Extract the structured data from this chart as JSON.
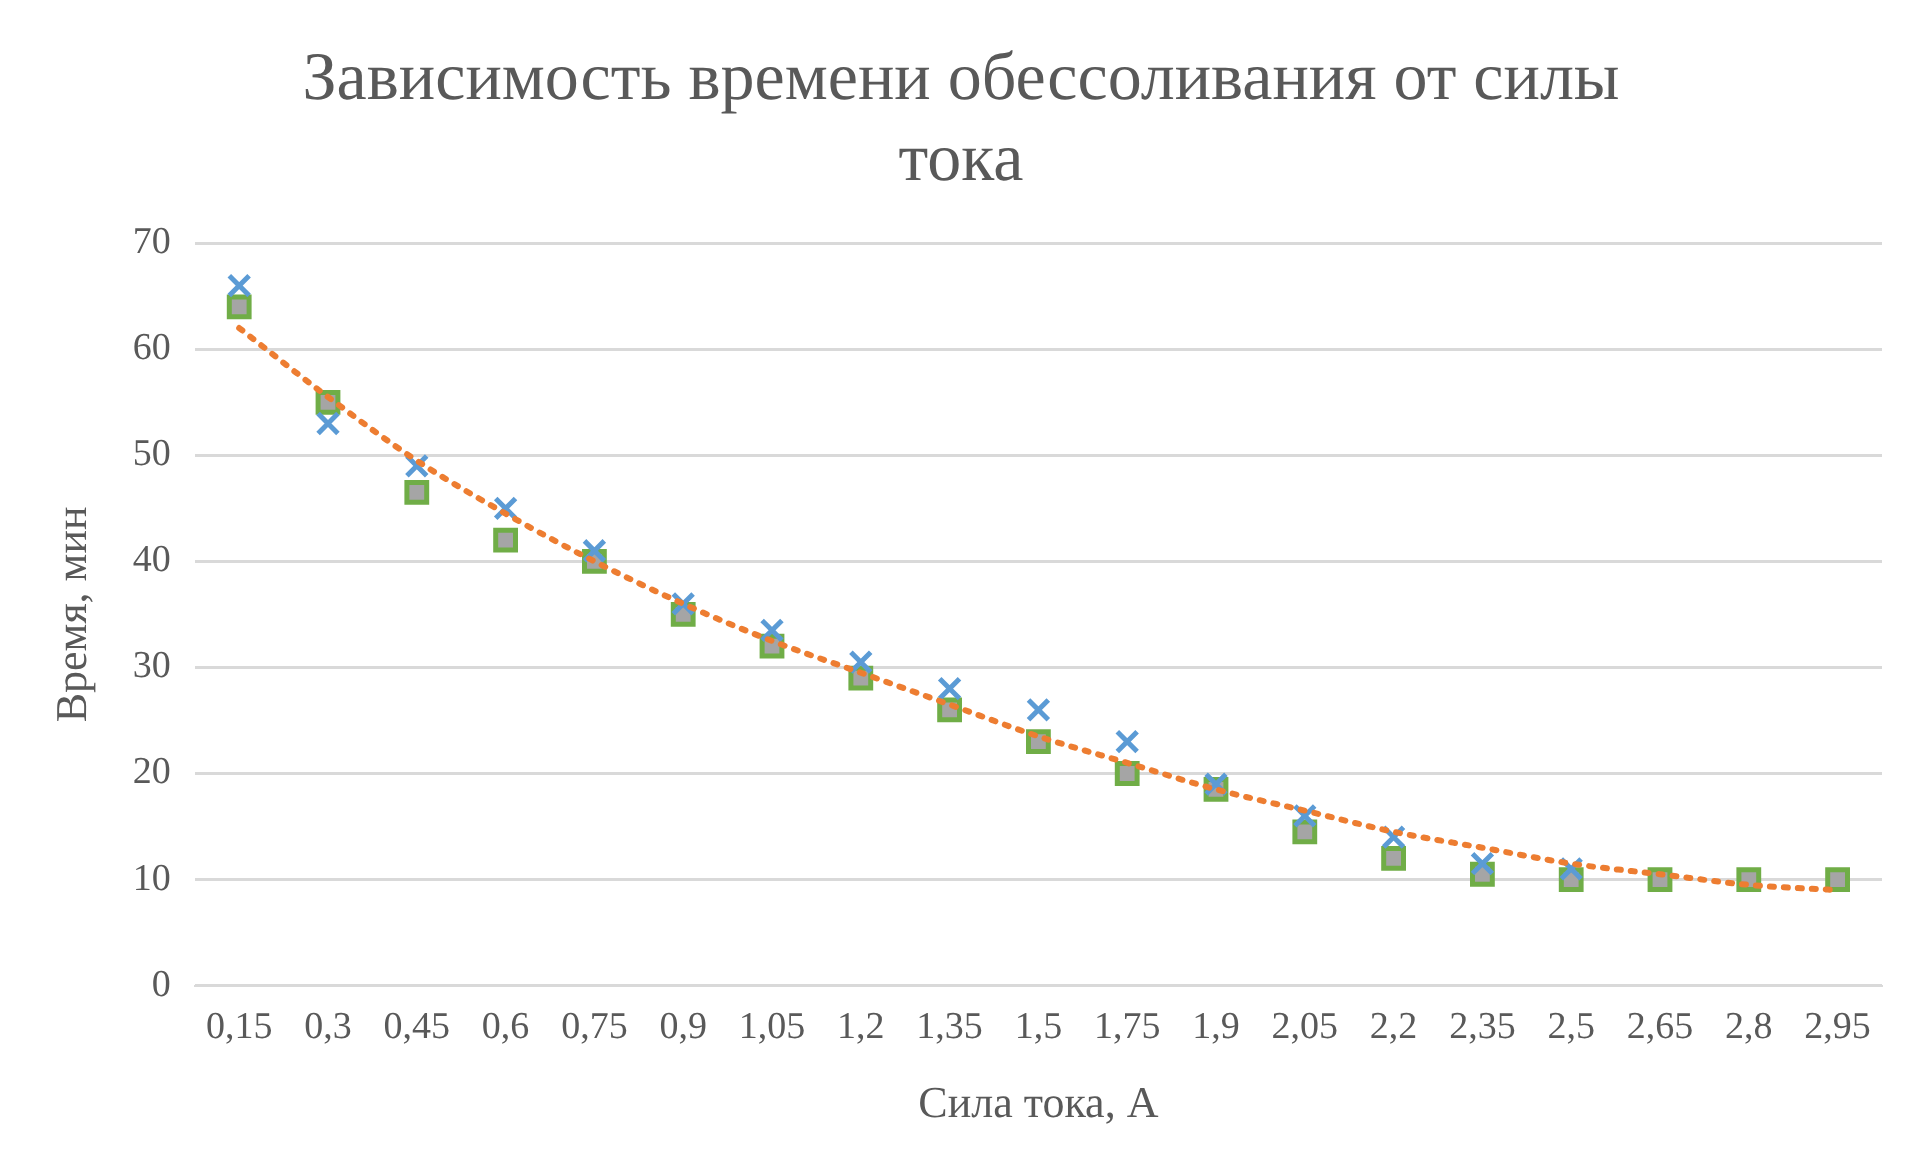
{
  "chart_data": {
    "type": "scatter",
    "title": "Зависимость времени обессоливания от силы тока",
    "xlabel": "Сила тока, А",
    "ylabel": "Время, мин",
    "categories": [
      "0,15",
      "0,3",
      "0,45",
      "0,6",
      "0,75",
      "0,9",
      "1,05",
      "1,2",
      "1,35",
      "1,5",
      "1,75",
      "1,9",
      "2,05",
      "2,2",
      "2,35",
      "2,5",
      "2,65",
      "2,8",
      "2,95"
    ],
    "series": [
      {
        "marker": "cross",
        "color": "#5b9bd5",
        "values": [
          66,
          53,
          49,
          45,
          41,
          36,
          33.5,
          30.5,
          28,
          26,
          23,
          19,
          16,
          14,
          11.5,
          11,
          null,
          null,
          null
        ]
      },
      {
        "marker": "square",
        "color": "#a5a5a5",
        "values": [
          64,
          55,
          46.5,
          42,
          40,
          35,
          32,
          29,
          26,
          23,
          20,
          18.5,
          14.5,
          12,
          10.5,
          10,
          10,
          10,
          10
        ]
      },
      {
        "type": "line",
        "marker": "none",
        "line_style": "dotted",
        "color": "#ed7d31",
        "values": [
          62,
          55.5,
          49.5,
          44.5,
          40,
          36,
          32.5,
          29.5,
          26.5,
          23.5,
          21,
          18.5,
          16.5,
          14.5,
          13,
          11.5,
          10.5,
          9.5,
          9
        ]
      }
    ],
    "ylim": [
      0,
      70
    ],
    "yticks": [
      0,
      10,
      20,
      30,
      40,
      50,
      60,
      70
    ],
    "grid": "y",
    "legend": false
  }
}
